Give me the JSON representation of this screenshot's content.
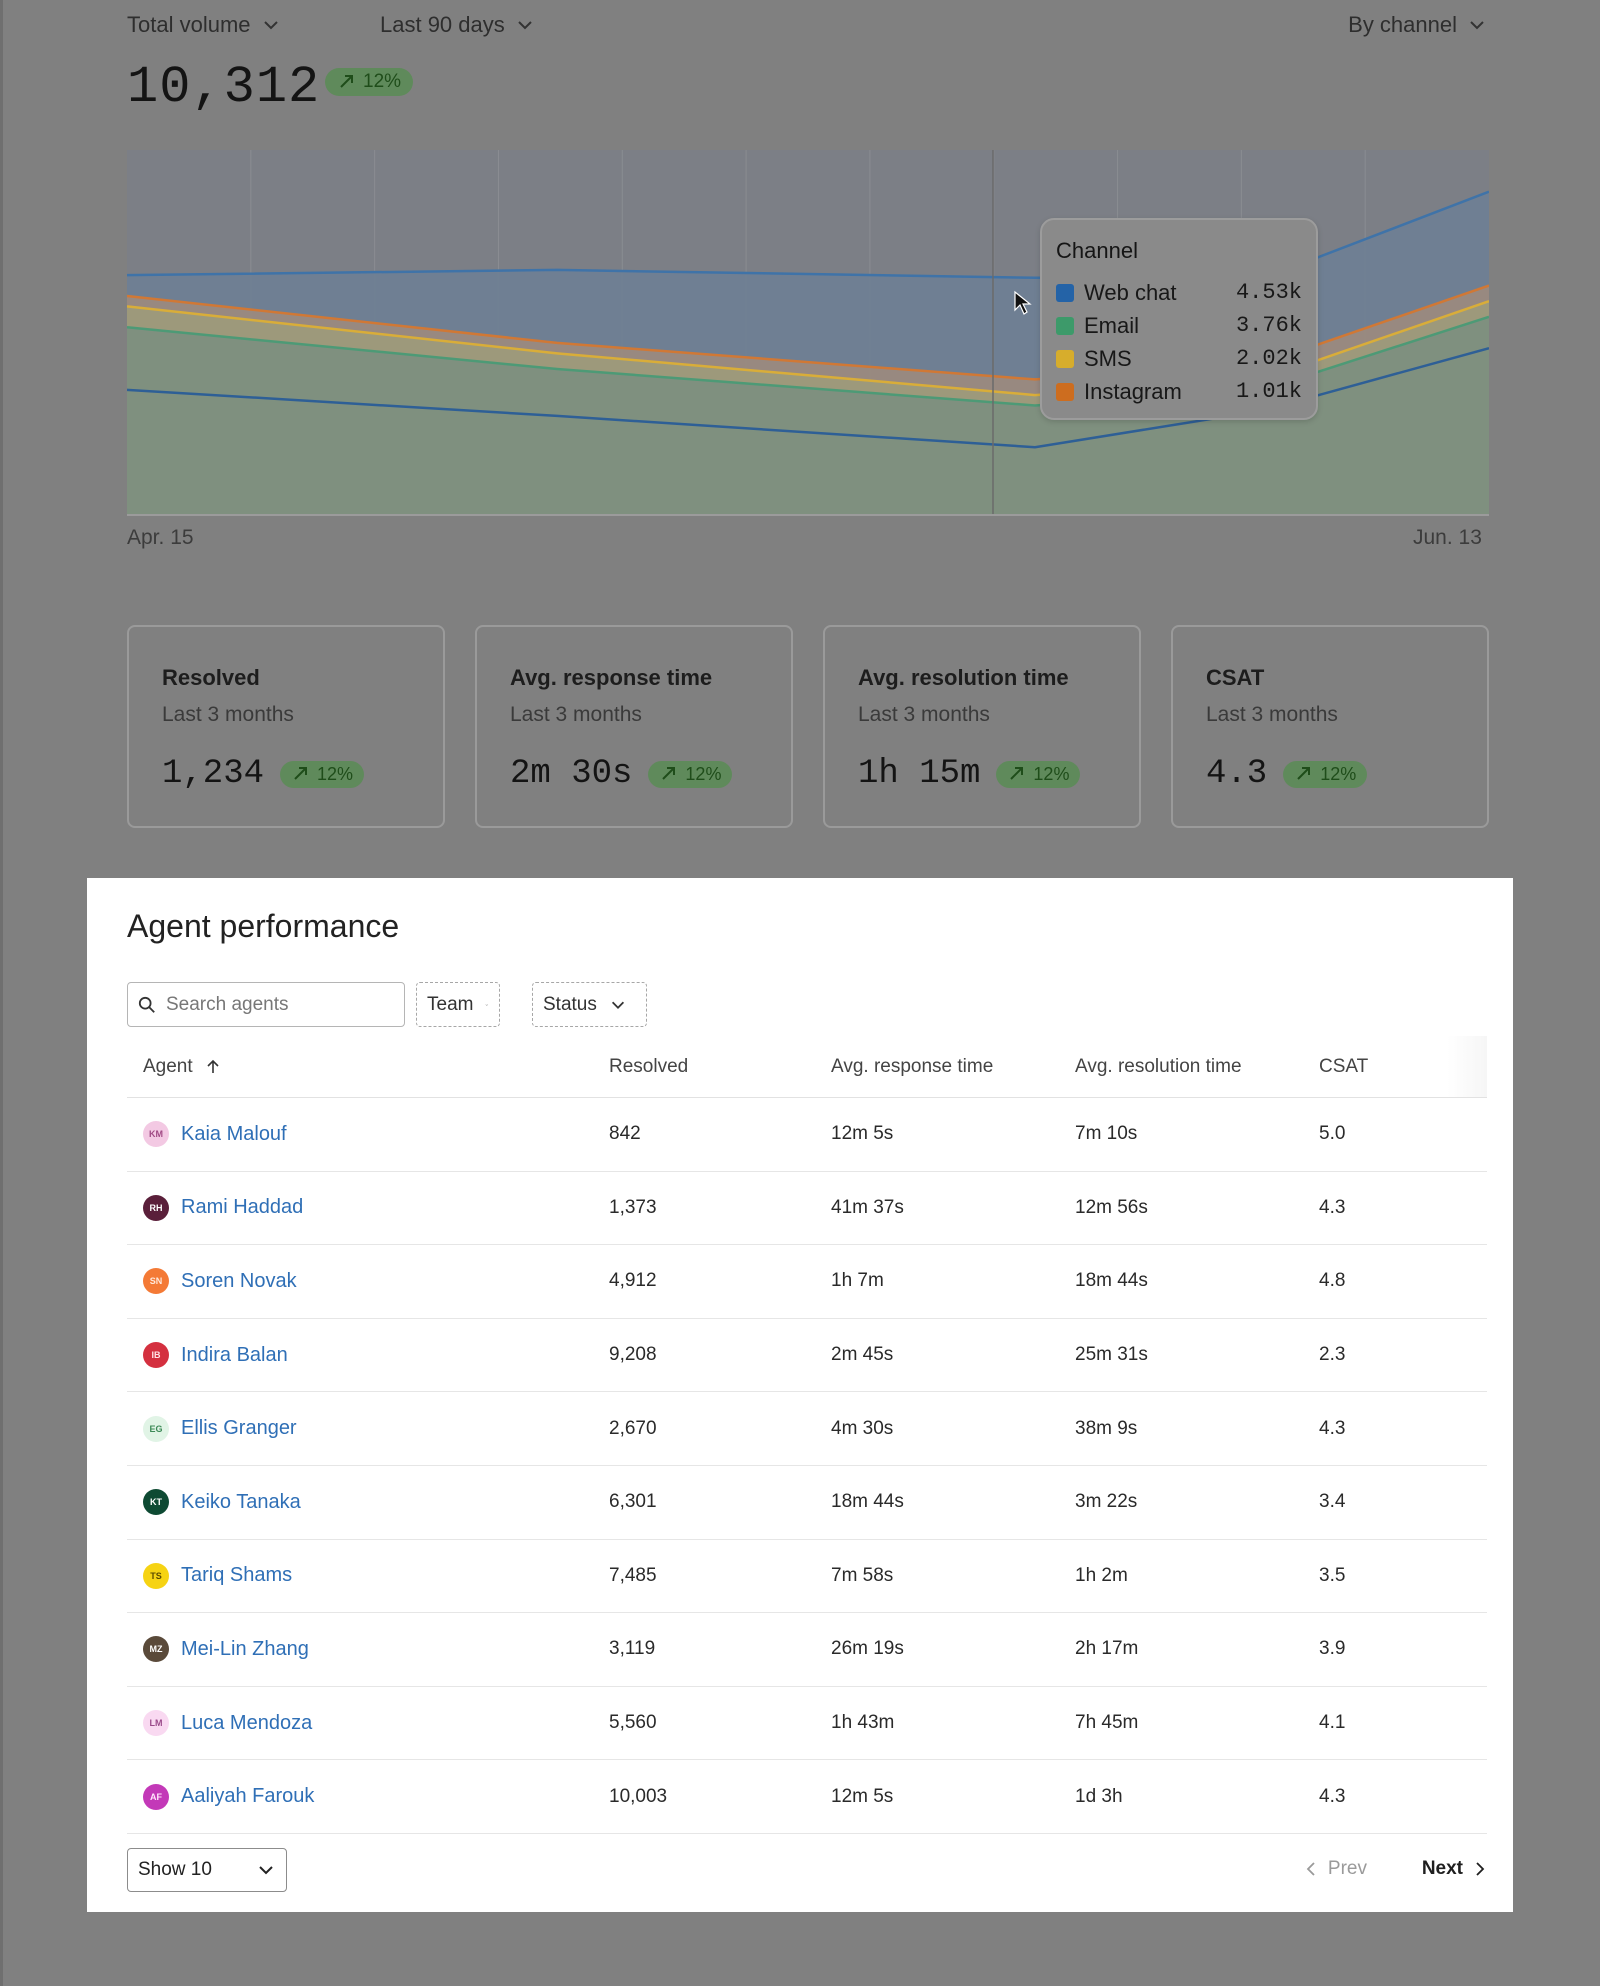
{
  "controls": {
    "metric": "Total volume",
    "range": "Last 90 days",
    "group": "By channel"
  },
  "summary": {
    "total": "10,312",
    "trend": "12%"
  },
  "chart_data": {
    "type": "area",
    "x_start_label": "Apr. 15",
    "x_end_label": "Jun. 13",
    "series": [
      {
        "name": "Web chat",
        "color": "#3f73a8",
        "values": [
          4.6,
          4.7,
          4.55,
          4.53,
          6.2
        ]
      },
      {
        "name": "Email",
        "color": "#4d9a76",
        "values": [
          3.6,
          2.8,
          2.1,
          2.4,
          3.8
        ]
      },
      {
        "name": "SMS",
        "color": "#d9ad39",
        "values": [
          4.0,
          3.1,
          2.3,
          2.6,
          4.1
        ]
      },
      {
        "name": "Instagram",
        "color": "#d07835",
        "values": [
          4.2,
          3.3,
          2.6,
          2.9,
          4.4
        ]
      }
    ],
    "grid": true
  },
  "tooltip": {
    "title": "Channel",
    "items": [
      {
        "name": "Web chat",
        "value": "4.53k",
        "color": "#2463a7"
      },
      {
        "name": "Email",
        "value": "3.76k",
        "color": "#3d9a6a"
      },
      {
        "name": "SMS",
        "value": "2.02k",
        "color": "#d7ad2c"
      },
      {
        "name": "Instagram",
        "value": "1.01k",
        "color": "#cd6d1f"
      }
    ]
  },
  "kpis": [
    {
      "title": "Resolved",
      "sub": "Last 3 months",
      "value": "1,234",
      "trend": "12%"
    },
    {
      "title": "Avg. response time",
      "sub": "Last 3 months",
      "value": "2m 30s",
      "trend": "12%"
    },
    {
      "title": "Avg. resolution time",
      "sub": "Last 3 months",
      "value": "1h 15m",
      "trend": "12%"
    },
    {
      "title": "CSAT",
      "sub": "Last 3 months",
      "value": "4.3",
      "trend": "12%"
    }
  ],
  "panel": {
    "title": "Agent performance",
    "search_placeholder": "Search agents",
    "filter_team": "Team",
    "filter_status": "Status"
  },
  "table": {
    "headers": [
      "Agent",
      "Resolved",
      "Avg. response time",
      "Avg. resolution time",
      "CSAT"
    ],
    "rows": [
      {
        "initials": "KM",
        "name": "Kaia Malouf",
        "resolved": "842",
        "response": "12m 5s",
        "resolution": "7m 10s",
        "csat": "5.0",
        "bg": "#f3c9e3",
        "fg": "#a14a85"
      },
      {
        "initials": "RH",
        "name": "Rami Haddad",
        "resolved": "1,373",
        "response": "41m 37s",
        "resolution": "12m 56s",
        "csat": "4.3",
        "bg": "#5a1f3a",
        "fg": "#ffffff"
      },
      {
        "initials": "SN",
        "name": "Soren Novak",
        "resolved": "4,912",
        "response": "1h 7m",
        "resolution": "18m 44s",
        "csat": "4.8",
        "bg": "#f47a36",
        "fg": "#ffe9dc"
      },
      {
        "initials": "IB",
        "name": "Indira Balan",
        "resolved": "9,208",
        "response": "2m 45s",
        "resolution": "25m 31s",
        "csat": "2.3",
        "bg": "#d4303f",
        "fg": "#ffe3e6"
      },
      {
        "initials": "EG",
        "name": "Ellis Granger",
        "resolved": "2,670",
        "response": "4m 30s",
        "resolution": "38m 9s",
        "csat": "4.3",
        "bg": "#e1f4e6",
        "fg": "#3d8a57"
      },
      {
        "initials": "KT",
        "name": "Keiko Tanaka",
        "resolved": "6,301",
        "response": "18m 44s",
        "resolution": "3m 22s",
        "csat": "3.4",
        "bg": "#0e4a33",
        "fg": "#ffffff"
      },
      {
        "initials": "TS",
        "name": "Tariq Shams",
        "resolved": "7,485",
        "response": "7m 58s",
        "resolution": "1h 2m",
        "csat": "3.5",
        "bg": "#f6d313",
        "fg": "#5c4b00"
      },
      {
        "initials": "MZ",
        "name": "Mei-Lin Zhang",
        "resolved": "3,119",
        "response": "26m 19s",
        "resolution": "2h 17m",
        "csat": "3.9",
        "bg": "#5a4a3a",
        "fg": "#ffffff"
      },
      {
        "initials": "LM",
        "name": "Luca Mendoza",
        "resolved": "5,560",
        "response": "1h 43m",
        "resolution": "7h 45m",
        "csat": "4.1",
        "bg": "#f9d9f1",
        "fg": "#9a4a8a"
      },
      {
        "initials": "AF",
        "name": "Aaliyah Farouk",
        "resolved": "10,003",
        "response": "12m 5s",
        "resolution": "1d 3h",
        "csat": "4.3",
        "bg": "#c339b8",
        "fg": "#ffe6fb"
      }
    ]
  },
  "footer": {
    "show": "Show 10",
    "prev": "Prev",
    "next": "Next"
  }
}
